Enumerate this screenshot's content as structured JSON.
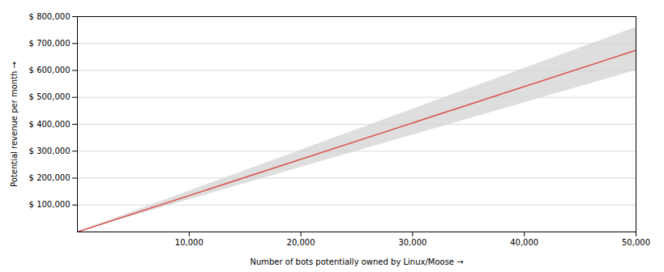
{
  "chart_data": {
    "type": "line",
    "x": [
      0,
      50000
    ],
    "values": [
      0,
      675000
    ],
    "color": "#d9534f",
    "band": {
      "lower": [
        0,
        600000
      ],
      "upper": [
        0,
        760000
      ],
      "color": "#d0d0d0"
    },
    "xlabel": "Number of bots potentially owned by Linux/Moose",
    "ylabel": "Potential revenue per month",
    "xlim": [
      0,
      50000
    ],
    "ylim": [
      0,
      800000
    ],
    "xticks": [
      {
        "value": 10000,
        "label": "10,000"
      },
      {
        "value": 20000,
        "label": "20,000"
      },
      {
        "value": 30000,
        "label": "30,000"
      },
      {
        "value": 40000,
        "label": "40,000"
      },
      {
        "value": 50000,
        "label": "50,000"
      }
    ],
    "yticks": [
      {
        "value": 100000,
        "label": "$ 100,000"
      },
      {
        "value": 200000,
        "label": "$ 200,000"
      },
      {
        "value": 300000,
        "label": "$ 300,000"
      },
      {
        "value": 400000,
        "label": "$ 400,000"
      },
      {
        "value": 500000,
        "label": "$ 500,000"
      },
      {
        "value": 600000,
        "label": "$ 600,000"
      },
      {
        "value": 700000,
        "label": "$ 700,000"
      },
      {
        "value": 800000,
        "label": "$ 800,000"
      }
    ],
    "grid": "y"
  }
}
